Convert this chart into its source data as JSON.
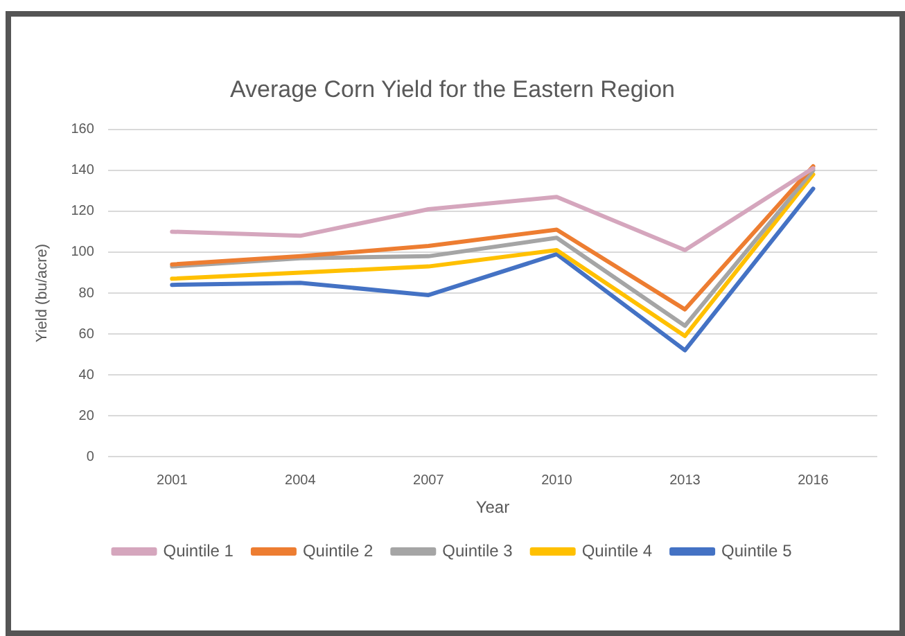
{
  "chart_data": {
    "type": "line",
    "title": "Average Corn Yield for the Eastern Region",
    "xlabel": "Year",
    "ylabel": "Yield (bu/acre)",
    "categories": [
      "2001",
      "2004",
      "2007",
      "2010",
      "2013",
      "2016"
    ],
    "series": [
      {
        "name": "Quintile 1",
        "color": "#d5a6bd",
        "values": [
          110,
          108,
          121,
          127,
          101,
          141
        ]
      },
      {
        "name": "Quintile 2",
        "color": "#ed7d31",
        "values": [
          94,
          98,
          103,
          111,
          72,
          142
        ]
      },
      {
        "name": "Quintile 3",
        "color": "#a5a5a5",
        "values": [
          93,
          97,
          98,
          107,
          64,
          140
        ]
      },
      {
        "name": "Quintile 4",
        "color": "#ffc000",
        "values": [
          87,
          90,
          93,
          101,
          59,
          138
        ]
      },
      {
        "name": "Quintile 5",
        "color": "#4472c4",
        "values": [
          84,
          85,
          79,
          99,
          52,
          131
        ]
      }
    ],
    "ylim": [
      0,
      160
    ],
    "yticks": [
      0,
      20,
      40,
      60,
      80,
      100,
      120,
      140,
      160
    ],
    "grid": "y",
    "legend": "bottom",
    "marker": "none",
    "line_style": "solid"
  }
}
